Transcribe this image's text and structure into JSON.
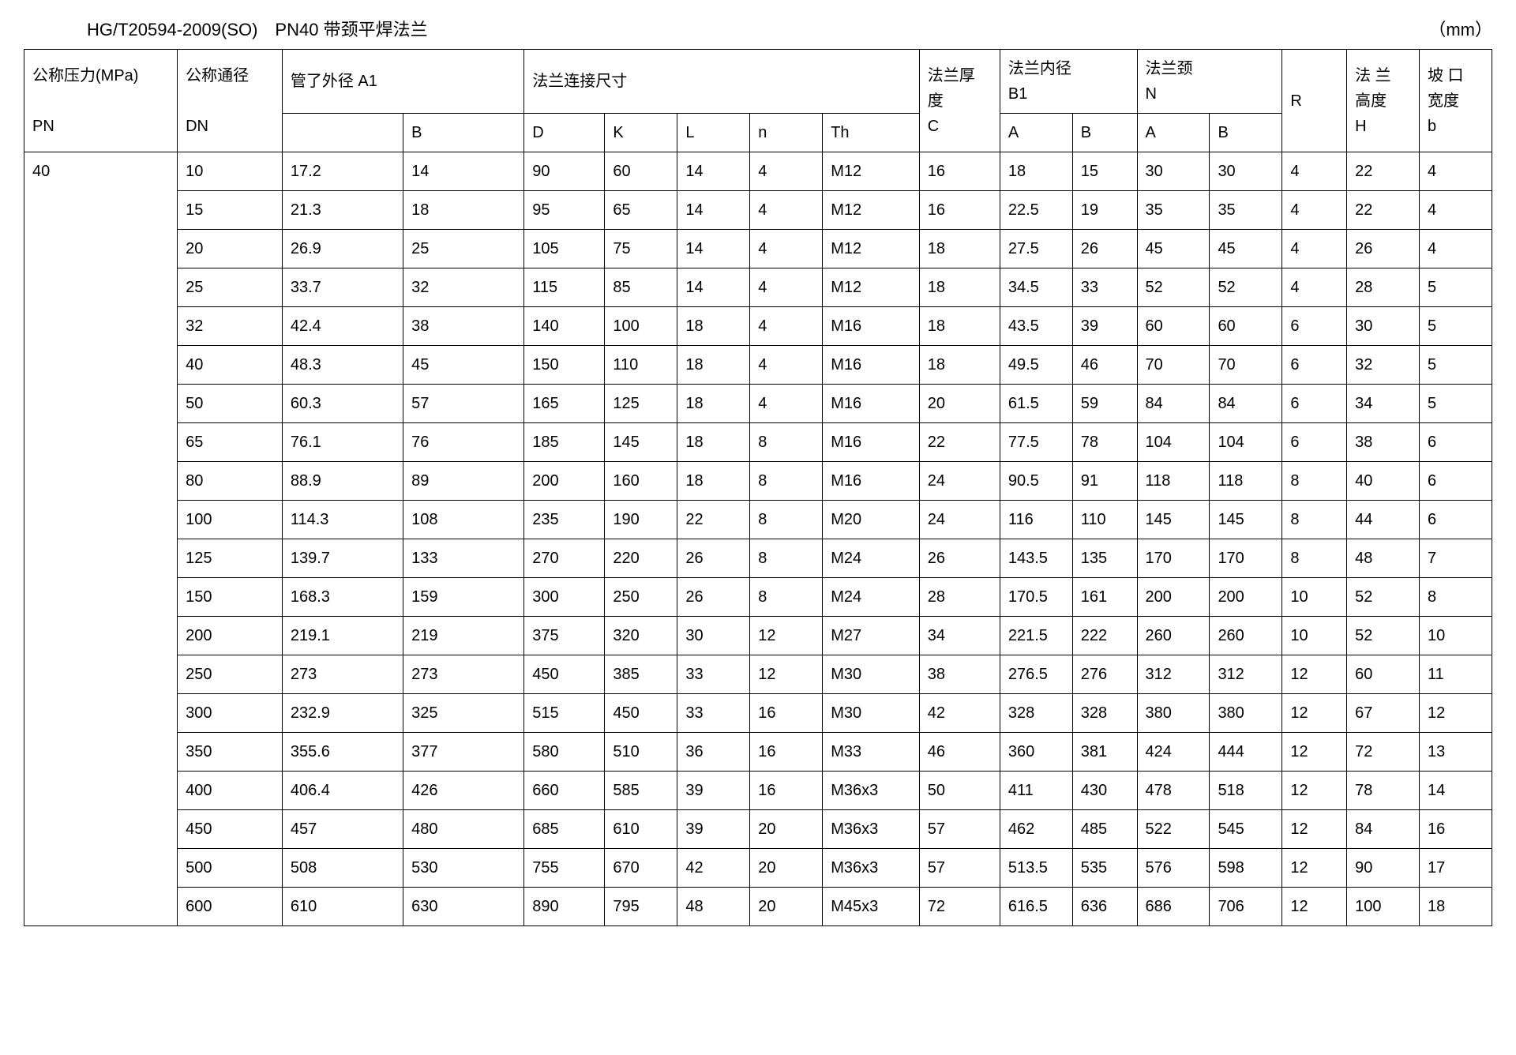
{
  "title": {
    "left": "HG/T20594-2009(SO)　PN40 带颈平焊法兰",
    "right": "（mm）"
  },
  "header": {
    "pn_l1": "公称压力(MPa)",
    "pn_l2": "PN",
    "dn_l1": "公称通径",
    "dn_l2": "DN",
    "a1_group": "管了外径 A1",
    "a1_b": "B",
    "conn_group": "法兰连接尺寸",
    "d": "D",
    "k": "K",
    "l": "L",
    "n": "n",
    "th": "Th",
    "c_l1": "法兰厚",
    "c_l2": "度",
    "c_l3": "C",
    "b1_l1": "法兰内径",
    "b1_l2": "B1",
    "b1_a": "A",
    "b1_b": "B",
    "neck_l1": "法兰颈",
    "neck_l2": "N",
    "neck_a": "A",
    "neck_b": "B",
    "r": "R",
    "h_l1": "法 兰",
    "h_l2": "高度",
    "h_l3": "H",
    "bevel_l1": "坡 口",
    "bevel_l2": "宽度",
    "bevel_l3": "b"
  },
  "pn_value": "40",
  "rows": [
    [
      "10",
      "17.2",
      "14",
      "90",
      "60",
      "14",
      "4",
      "M12",
      "16",
      "18",
      "15",
      "30",
      "30",
      "4",
      "22",
      "4"
    ],
    [
      "15",
      "21.3",
      "18",
      "95",
      "65",
      "14",
      "4",
      "M12",
      "16",
      "22.5",
      "19",
      "35",
      "35",
      "4",
      "22",
      "4"
    ],
    [
      "20",
      "26.9",
      "25",
      "105",
      "75",
      "14",
      "4",
      "M12",
      "18",
      "27.5",
      "26",
      "45",
      "45",
      "4",
      "26",
      "4"
    ],
    [
      "25",
      "33.7",
      "32",
      "115",
      "85",
      "14",
      "4",
      "M12",
      "18",
      "34.5",
      "33",
      "52",
      "52",
      "4",
      "28",
      "5"
    ],
    [
      "32",
      "42.4",
      "38",
      "140",
      "100",
      "18",
      "4",
      "M16",
      "18",
      "43.5",
      "39",
      "60",
      "60",
      "6",
      "30",
      "5"
    ],
    [
      "40",
      "48.3",
      "45",
      "150",
      "110",
      "18",
      "4",
      "M16",
      "18",
      "49.5",
      "46",
      "70",
      "70",
      "6",
      "32",
      "5"
    ],
    [
      "50",
      "60.3",
      "57",
      "165",
      "125",
      "18",
      "4",
      "M16",
      "20",
      "61.5",
      "59",
      "84",
      "84",
      "6",
      "34",
      "5"
    ],
    [
      "65",
      "76.1",
      "76",
      "185",
      "145",
      "18",
      "8",
      "M16",
      "22",
      "77.5",
      "78",
      "104",
      "104",
      "6",
      "38",
      "6"
    ],
    [
      "80",
      "88.9",
      "89",
      "200",
      "160",
      "18",
      "8",
      "M16",
      "24",
      "90.5",
      "91",
      "118",
      "118",
      "8",
      "40",
      "6"
    ],
    [
      "100",
      "114.3",
      "108",
      "235",
      "190",
      "22",
      "8",
      "M20",
      "24",
      "116",
      "110",
      "145",
      "145",
      "8",
      "44",
      "6"
    ],
    [
      "125",
      "139.7",
      "133",
      "270",
      "220",
      "26",
      "8",
      "M24",
      "26",
      "143.5",
      "135",
      "170",
      "170",
      "8",
      "48",
      "7"
    ],
    [
      "150",
      "168.3",
      "159",
      "300",
      "250",
      "26",
      "8",
      "M24",
      "28",
      "170.5",
      "161",
      "200",
      "200",
      "10",
      "52",
      "8"
    ],
    [
      "200",
      "219.1",
      "219",
      "375",
      "320",
      "30",
      "12",
      "M27",
      "34",
      "221.5",
      "222",
      "260",
      "260",
      "10",
      "52",
      "10"
    ],
    [
      "250",
      "273",
      "273",
      "450",
      "385",
      "33",
      "12",
      "M30",
      "38",
      "276.5",
      "276",
      "312",
      "312",
      "12",
      "60",
      "11"
    ],
    [
      "300",
      "232.9",
      "325",
      "515",
      "450",
      "33",
      "16",
      "M30",
      "42",
      "328",
      "328",
      "380",
      "380",
      "12",
      "67",
      "12"
    ],
    [
      "350",
      "355.6",
      "377",
      "580",
      "510",
      "36",
      "16",
      "M33",
      "46",
      "360",
      "381",
      "424",
      "444",
      "12",
      "72",
      "13"
    ],
    [
      "400",
      "406.4",
      "426",
      "660",
      "585",
      "39",
      "16",
      "M36x3",
      "50",
      "411",
      "430",
      "478",
      "518",
      "12",
      "78",
      "14"
    ],
    [
      "450",
      "457",
      "480",
      "685",
      "610",
      "39",
      "20",
      "M36x3",
      "57",
      "462",
      "485",
      "522",
      "545",
      "12",
      "84",
      "16"
    ],
    [
      "500",
      "508",
      "530",
      "755",
      "670",
      "42",
      "20",
      "M36x3",
      "57",
      "513.5",
      "535",
      "576",
      "598",
      "12",
      "90",
      "17"
    ],
    [
      "600",
      "610",
      "630",
      "890",
      "795",
      "48",
      "20",
      "M45x3",
      "72",
      "616.5",
      "636",
      "686",
      "706",
      "12",
      "100",
      "18"
    ]
  ]
}
